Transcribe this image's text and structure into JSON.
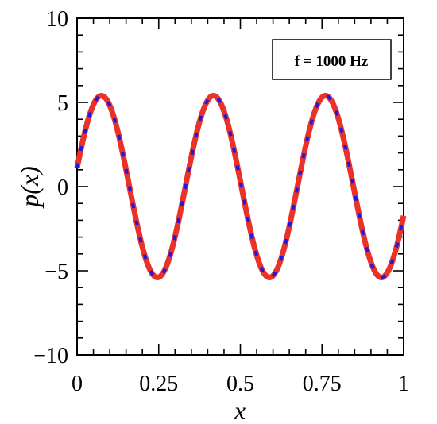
{
  "chart_data": {
    "type": "line",
    "xlabel": "x",
    "ylabel": "p(x)",
    "xlim": [
      0,
      1
    ],
    "ylim": [
      -10,
      10
    ],
    "xticks": [
      0,
      0.25,
      0.5,
      0.75,
      1
    ],
    "xtick_labels": [
      "0",
      "0.25",
      "0.5",
      "0.75",
      "1"
    ],
    "yticks": [
      -10,
      -5,
      0,
      5,
      10
    ],
    "ytick_labels": [
      "−10",
      "−5",
      "0",
      "5",
      "10"
    ],
    "grid": false,
    "annotation": "f = 1000 Hz",
    "annotation_placement": "top-right",
    "series": [
      {
        "style": "solid",
        "color": "#e8322a",
        "function": "amplitude * sin(2*pi*cycles*x + phase)",
        "amplitude": 5.4,
        "cycles": 2.915,
        "phase": 0.207,
        "x_range": [
          0,
          1
        ]
      },
      {
        "style": "dashed",
        "color": "#1a1ae6",
        "function": "amplitude * sin(2*pi*cycles*x + phase)",
        "amplitude": 5.4,
        "cycles": 2.915,
        "phase": 0.207,
        "x_range": [
          0,
          1
        ]
      }
    ]
  }
}
